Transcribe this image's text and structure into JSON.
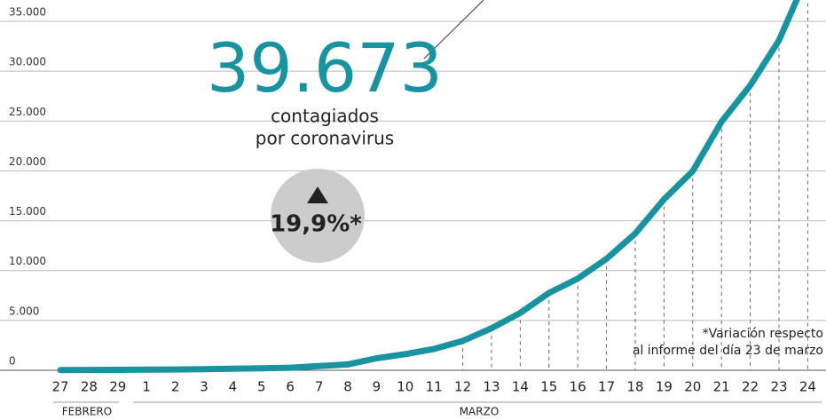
{
  "chart_data": {
    "type": "line",
    "headline": "39.673",
    "headline_caption": [
      "contagiados",
      "por coronavirus"
    ],
    "change": "19,9%*",
    "footnote": [
      "*Variación respecto",
      "al informe del día 23 de marzo"
    ],
    "months": [
      "FEBRERO",
      "MARZO"
    ],
    "categories": [
      "27",
      "28",
      "29",
      "1",
      "2",
      "3",
      "4",
      "5",
      "6",
      "7",
      "8",
      "9",
      "10",
      "11",
      "12",
      "13",
      "14",
      "15",
      "16",
      "17",
      "18",
      "19",
      "20",
      "21",
      "22",
      "23",
      "24"
    ],
    "series": [
      {
        "name": "contagiados",
        "color": "#1a93a0",
        "values": [
          15,
          32,
          45,
          73,
          84,
          114,
          151,
          198,
          261,
          430,
          589,
          1204,
          1622,
          2140,
          2950,
          4209,
          5753,
          7753,
          9191,
          11178,
          13716,
          17147,
          19980,
          24926,
          28572,
          33089,
          39673
        ]
      }
    ],
    "ylim": [
      0,
      35000
    ],
    "yticks": [
      0,
      {
        "value": 5000,
        "label": "5.000"
      },
      {
        "value": 10000,
        "label": "10.000"
      },
      {
        "value": 15000,
        "label": "15.000"
      },
      {
        "value": 20000,
        "label": "20.000"
      },
      {
        "value": 25000,
        "label": "25.000"
      },
      {
        "value": 30000,
        "label": "30.000"
      },
      {
        "value": 35000,
        "label": "35.000"
      }
    ],
    "grid": true
  }
}
